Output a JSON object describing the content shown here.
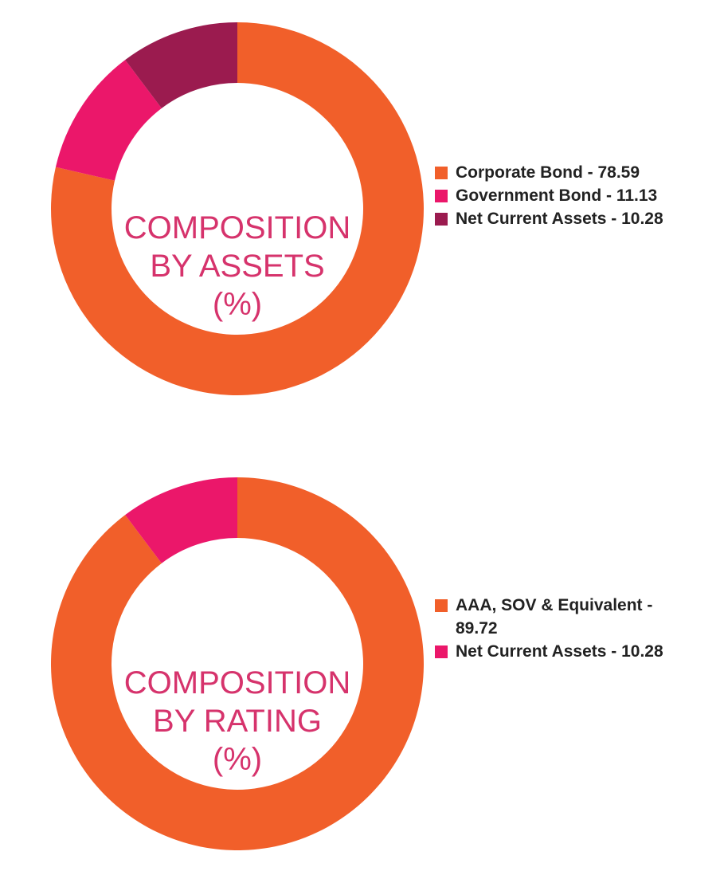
{
  "chart_data": [
    {
      "type": "pie",
      "donut": true,
      "title": [
        "COMPOSITION",
        "BY ASSETS",
        "(%)"
      ],
      "legend_position": "right",
      "slices": [
        {
          "label": "Corporate Bond - 78.59",
          "value": 78.59,
          "color": "#f15f2a"
        },
        {
          "label": "Government Bond - 11.13",
          "value": 11.13,
          "color": "#eb176a"
        },
        {
          "label": "Net Current Assets - 10.28",
          "value": 10.28,
          "color": "#9b1b4f"
        }
      ]
    },
    {
      "type": "pie",
      "donut": true,
      "title": [
        "COMPOSITION",
        "BY RATING",
        "(%)"
      ],
      "legend_position": "right",
      "slices": [
        {
          "label": "AAA, SOV & Equivalent - 89.72",
          "value": 89.72,
          "color": "#f15f2a"
        },
        {
          "label": "Net Current Assets - 10.28",
          "value": 10.28,
          "color": "#eb176a"
        }
      ]
    }
  ]
}
